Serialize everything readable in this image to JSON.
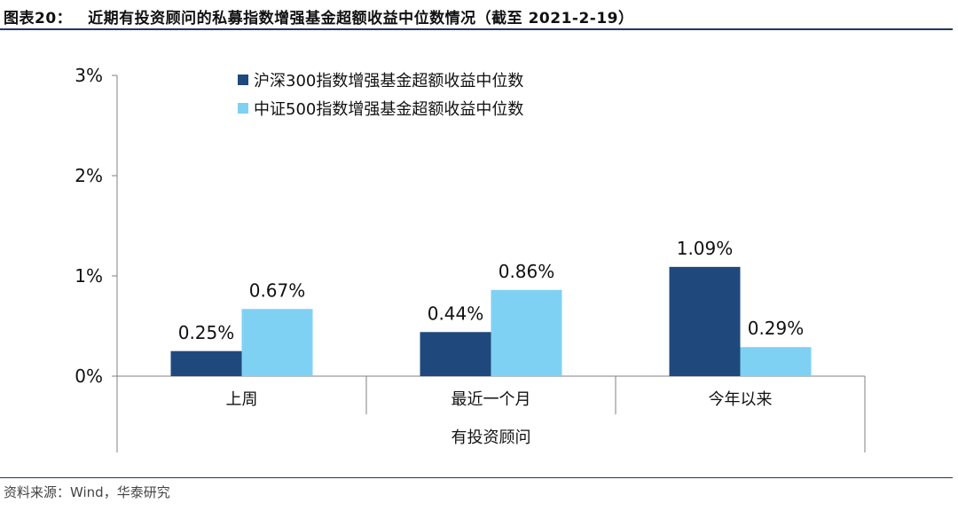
{
  "figure": {
    "number": "图表20：",
    "title": "近期有投资顾问的私募指数增强基金超额收益中位数情况（截至 2021-2-19）",
    "source": "资料来源：Wind，华泰研究"
  },
  "colors": {
    "accent": "#1f3864",
    "series1": "#1f497d",
    "series2": "#7fd1f3"
  },
  "chart_data": {
    "type": "bar",
    "title": "",
    "categories": [
      "上周",
      "最近一个月",
      "今年以来"
    ],
    "group_label": "有投资顾问",
    "xlabel": "有投资顾问",
    "ylabel": "",
    "ylim": [
      0,
      3
    ],
    "y_ticks": [
      0,
      1,
      2,
      3
    ],
    "y_tick_labels": [
      "0%",
      "1%",
      "2%",
      "3%"
    ],
    "legend_position": "top",
    "grid": false,
    "series": [
      {
        "name": "沪深300指数增强基金超额收益中位数",
        "values": [
          0.25,
          0.44,
          1.09
        ],
        "labels": [
          "0.25%",
          "0.44%",
          "1.09%"
        ],
        "color": "#1f497d"
      },
      {
        "name": "中证500指数增强基金超额收益中位数",
        "values": [
          0.67,
          0.86,
          0.29
        ],
        "labels": [
          "0.67%",
          "0.86%",
          "0.29%"
        ],
        "color": "#7fd1f3"
      }
    ]
  }
}
